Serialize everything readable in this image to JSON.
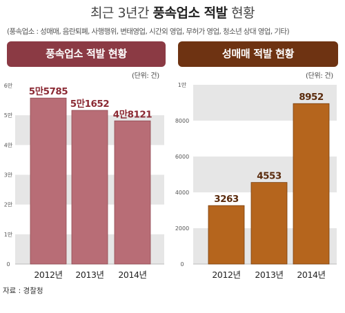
{
  "header": {
    "title_pre": "최근 3년간 ",
    "title_bold": "풍속업소 적발",
    "title_post": " 현황",
    "subtitle": "(풍속업소 : 성매매, 음란퇴폐, 사행행위, 변태영업, 시간외 영업, 무허가 영업, 청소년 상대 영업, 기타)"
  },
  "source": "자료 : 경찰청",
  "colors": {
    "left_header": "#8b3a44",
    "left_bar": "#b86d76",
    "left_label": "#8b2a34",
    "right_header": "#6e3312",
    "right_bar": "#b5651d",
    "right_label": "#5a2a0c",
    "band": "#e6e6e6"
  },
  "chart_data": [
    {
      "type": "bar",
      "title": "풍속업소 적발 현황",
      "unit": "(단위: 건)",
      "categories": [
        "2012년",
        "2013년",
        "2014년"
      ],
      "values": [
        55785,
        51652,
        48121
      ],
      "value_labels": [
        "5만5785",
        "5만1652",
        "4만8121"
      ],
      "yticks": [
        0,
        10000,
        20000,
        30000,
        40000,
        50000,
        60000
      ],
      "ytick_labels": [
        "0",
        "1만",
        "2만",
        "3만",
        "4만",
        "5만",
        "6만"
      ],
      "ylim": [
        0,
        60000
      ]
    },
    {
      "type": "bar",
      "title": "성매매 적발 현황",
      "unit": "(단위: 건)",
      "categories": [
        "2012년",
        "2013년",
        "2014년"
      ],
      "values": [
        3263,
        4553,
        8952
      ],
      "value_labels": [
        "3263",
        "4553",
        "8952"
      ],
      "yticks": [
        0,
        2000,
        4000,
        6000,
        8000,
        10000
      ],
      "ytick_labels": [
        "0",
        "2000",
        "4000",
        "6000",
        "8000",
        "1만"
      ],
      "ylim": [
        0,
        10000
      ]
    }
  ]
}
